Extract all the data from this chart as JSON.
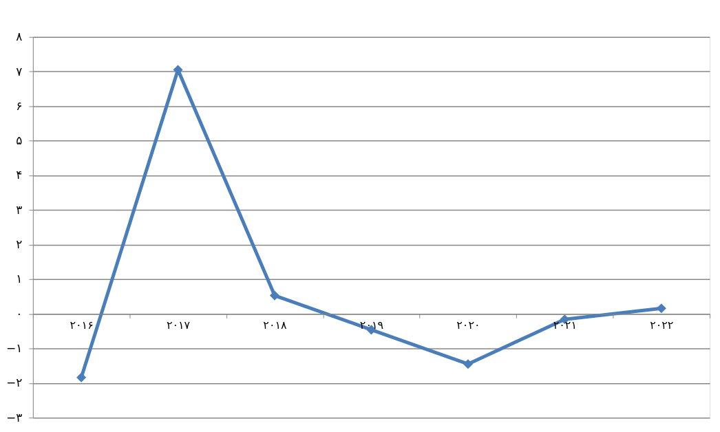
{
  "chart_data": {
    "type": "line",
    "categories": [
      "۲۰۱۶",
      "۲۰۱۷",
      "۲۰۱۸",
      "۲۰۱۹",
      "۲۰۲۰",
      "۲۰۲۱",
      "۲۰۲۲"
    ],
    "series": [
      {
        "color": "#4a7ebb",
        "values": [
          -1.84,
          7.05,
          0.53,
          -0.46,
          -1.45,
          -0.16,
          0.16
        ]
      }
    ],
    "ylim": [
      -3,
      8
    ],
    "yticks": [
      {
        "value": -3,
        "label": "−۳"
      },
      {
        "value": -2,
        "label": "−۲"
      },
      {
        "value": -1,
        "label": "−۱"
      },
      {
        "value": 0,
        "label": "۰"
      },
      {
        "value": 1,
        "label": "۱"
      },
      {
        "value": 2,
        "label": "۲"
      },
      {
        "value": 3,
        "label": "۳"
      },
      {
        "value": 4,
        "label": "۴"
      },
      {
        "value": 5,
        "label": "۵"
      },
      {
        "value": 6,
        "label": "۶"
      },
      {
        "value": 7,
        "label": "۷"
      },
      {
        "value": 8,
        "label": "۸"
      }
    ],
    "grid": "y",
    "marker": "diamond",
    "line_style": "solid",
    "legend": false
  }
}
